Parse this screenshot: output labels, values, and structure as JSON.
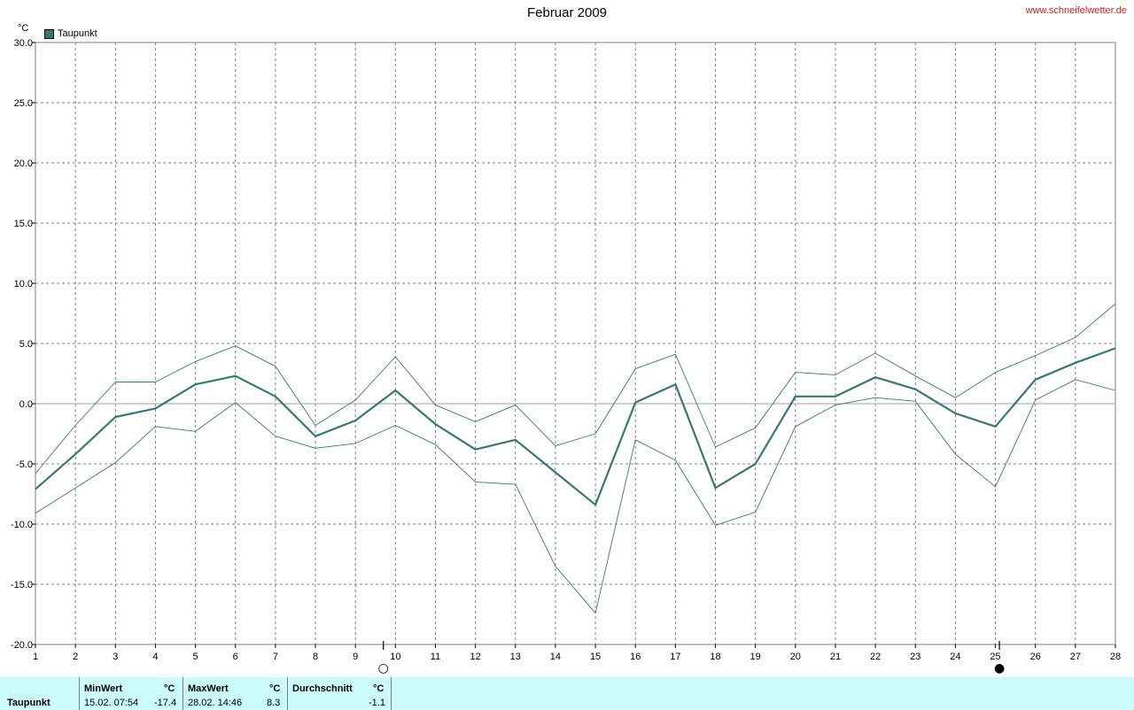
{
  "header": {
    "title": "Februar 2009",
    "site": "www.schneifelwetter.de",
    "unit": "°C"
  },
  "legend": {
    "label": "Taupunkt",
    "color": "#3d7474"
  },
  "chart_data": {
    "type": "line",
    "title": "Februar 2009",
    "ylabel": "°C",
    "ylim": [
      -20,
      30
    ],
    "yticks": [
      "30.0",
      "25.0",
      "20.0",
      "15.0",
      "10.0",
      "5.0",
      "0.0",
      "-5.0",
      "-10.0",
      "-15.0",
      "-20.0"
    ],
    "x": [
      1,
      2,
      3,
      4,
      5,
      6,
      7,
      8,
      9,
      10,
      11,
      12,
      13,
      14,
      15,
      16,
      17,
      18,
      19,
      20,
      21,
      22,
      23,
      24,
      25,
      26,
      27,
      28
    ],
    "grid": true,
    "legend_position": "top-left",
    "series": [
      {
        "name": "Taupunkt",
        "role": "mean",
        "color": "#3d7474",
        "values": [
          -7.1,
          -4.2,
          -1.1,
          -0.4,
          1.6,
          2.3,
          0.6,
          -2.7,
          -1.4,
          1.1,
          -1.7,
          -3.8,
          -3.0,
          -5.7,
          -8.4,
          0.1,
          1.6,
          -7.0,
          -5.0,
          0.6,
          0.6,
          2.2,
          1.2,
          -0.8,
          -1.9,
          2.0,
          3.4,
          4.6
        ]
      },
      {
        "role": "max",
        "color": "#3d7474",
        "values": [
          -5.8,
          -1.8,
          1.8,
          1.8,
          3.5,
          4.8,
          3.1,
          -1.8,
          0.3,
          3.9,
          -0.1,
          -1.5,
          -0.1,
          -3.5,
          -2.5,
          2.9,
          4.1,
          -3.6,
          -2.0,
          2.6,
          2.4,
          4.2,
          2.3,
          0.5,
          2.6,
          4.0,
          5.5,
          8.3
        ]
      },
      {
        "role": "min",
        "color": "#3d7474",
        "values": [
          -9.1,
          -7.0,
          -4.9,
          -1.9,
          -2.3,
          0.1,
          -2.7,
          -3.7,
          -3.3,
          -1.8,
          -3.4,
          -6.5,
          -6.7,
          -13.5,
          -17.4,
          -3.0,
          -4.7,
          -10.1,
          -9.0,
          -1.9,
          -0.1,
          0.5,
          0.2,
          -4.2,
          -6.9,
          0.3,
          2.0,
          1.1
        ]
      }
    ],
    "moon_phases": [
      {
        "day": 9.7,
        "phase": "full",
        "symbol": "○"
      },
      {
        "day": 25.1,
        "phase": "new",
        "symbol": "●"
      }
    ]
  },
  "summary_table": {
    "row_label": "Taupunkt",
    "min": {
      "header": "MinWert",
      "unit": "°C",
      "datetime": "15.02.  07:54",
      "value": "-17.4"
    },
    "max": {
      "header": "MaxWert",
      "unit": "°C",
      "datetime": "28.02.  14:46",
      "value": "8.3"
    },
    "avg": {
      "header": "Durchschnitt",
      "unit": "°C",
      "value": "-1.1"
    }
  }
}
